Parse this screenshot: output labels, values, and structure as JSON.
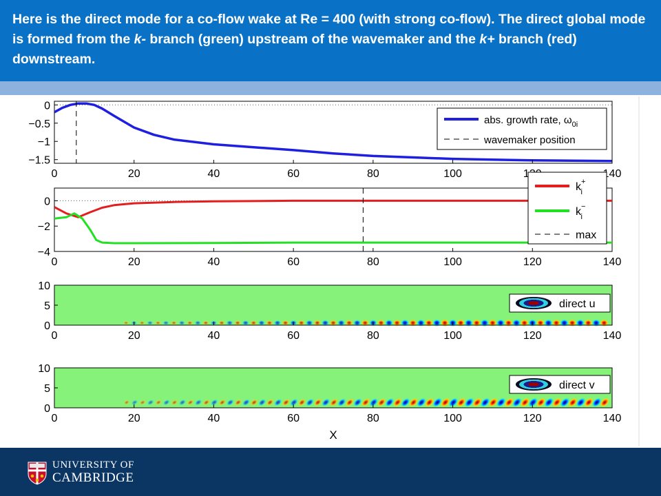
{
  "slide": {
    "text_a": "Here is the direct mode for a co-flow wake at Re = 400 (with strong co-flow). The direct global mode is formed from the ",
    "text_k_minus": "k-",
    "text_b": " branch (green) upstream of the wavemaker and the ",
    "text_k_plus": "k+",
    "text_c": " branch (red) downstream.",
    "header_color": "#0a72c6",
    "band_color": "#8eb2de"
  },
  "footer": {
    "line1": "UNIVERSITY OF",
    "line2": "CAMBRIDGE",
    "color": "#0b3664",
    "crest_icon": "university-crest-icon"
  },
  "chart_data": [
    {
      "type": "line",
      "xlim": [
        0,
        140
      ],
      "ylim": [
        -1.6,
        0.1
      ],
      "xticks": [
        "0",
        "20",
        "40",
        "60",
        "80",
        "100",
        "120",
        "140"
      ],
      "yticks": [
        "0",
        "−0.5",
        "−1",
        "−1.5"
      ],
      "ytick_values": [
        0,
        -0.5,
        -1,
        -1.5
      ],
      "zero_line": "dotted",
      "series": [
        {
          "name": "abs. growth rate, ω",
          "name_sub": "0i",
          "color": "#1f1fe0",
          "x": [
            0,
            2,
            4,
            6,
            8,
            10,
            12,
            15,
            20,
            25,
            30,
            40,
            50,
            60,
            70,
            80,
            90,
            100,
            110,
            120,
            130,
            140
          ],
          "y": [
            -0.2,
            -0.08,
            0.0,
            0.04,
            0.04,
            0.0,
            -0.1,
            -0.3,
            -0.62,
            -0.82,
            -0.95,
            -1.08,
            -1.16,
            -1.24,
            -1.33,
            -1.4,
            -1.44,
            -1.48,
            -1.5,
            -1.52,
            -1.53,
            -1.54
          ]
        },
        {
          "name": "wavemaker position",
          "color": "#000000",
          "style": "dashed",
          "vertical_x": 5.5
        }
      ],
      "legend": "top-right"
    },
    {
      "type": "line",
      "xlim": [
        0,
        140
      ],
      "ylim": [
        -4,
        1
      ],
      "xticks": [
        "0",
        "20",
        "40",
        "60",
        "80",
        "100",
        "120",
        "140"
      ],
      "yticks": [
        "0",
        "−2",
        "−4"
      ],
      "ytick_values": [
        0,
        -2,
        -4
      ],
      "zero_line": "dotted",
      "series": [
        {
          "name": "k",
          "name_sub": "i",
          "name_sup": "+",
          "color": "#e21e1e",
          "x": [
            0,
            3,
            6,
            9,
            12,
            15,
            20,
            30,
            40,
            60,
            80,
            100,
            120,
            140
          ],
          "y": [
            -0.5,
            -1.0,
            -1.3,
            -0.9,
            -0.55,
            -0.35,
            -0.2,
            -0.1,
            -0.05,
            0.0,
            0.0,
            0.0,
            0.0,
            0.0
          ]
        },
        {
          "name": "k",
          "name_sub": "i",
          "name_sup": "−",
          "color": "#22e022",
          "x": [
            0,
            3,
            5,
            7,
            9,
            10.5,
            12,
            15,
            20,
            40,
            60,
            80,
            100,
            120,
            140
          ],
          "y": [
            -1.4,
            -1.3,
            -1.0,
            -1.4,
            -2.3,
            -3.1,
            -3.3,
            -3.35,
            -3.35,
            -3.33,
            -3.3,
            -3.3,
            -3.3,
            -3.3,
            -3.3
          ]
        },
        {
          "name": "max",
          "color": "#000000",
          "style": "dashed",
          "vertical_x": 77.5
        }
      ],
      "legend": "top-right"
    },
    {
      "type": "heatmap",
      "name": "direct u",
      "xlim": [
        0,
        140
      ],
      "ylim": [
        0,
        10
      ],
      "xticks": [
        "0",
        "20",
        "40",
        "60",
        "80",
        "100",
        "120",
        "140"
      ],
      "yticks": [
        "0",
        "5",
        "10"
      ],
      "ytick_values": [
        0,
        5,
        10
      ],
      "background": "#86f27a",
      "wavelength": 4.0,
      "center_y": 0.4,
      "legend": "top-right"
    },
    {
      "type": "heatmap",
      "name": "direct v",
      "xlabel": "X",
      "xlim": [
        0,
        140
      ],
      "ylim": [
        0,
        10
      ],
      "xticks": [
        "0",
        "20",
        "40",
        "60",
        "80",
        "100",
        "120",
        "140"
      ],
      "yticks": [
        "0",
        "5",
        "10"
      ],
      "ytick_values": [
        0,
        5,
        10
      ],
      "background": "#86f27a",
      "wavelength": 4.0,
      "center_y": 1.0,
      "legend": "top-right"
    }
  ]
}
